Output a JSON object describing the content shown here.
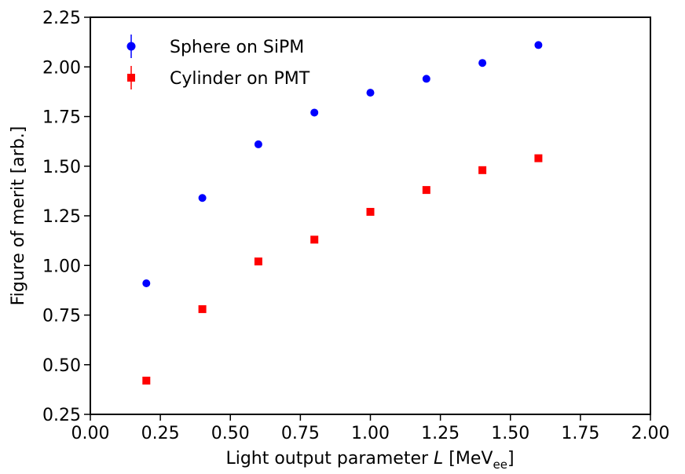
{
  "chart_data": {
    "type": "scatter",
    "xlabel": {
      "prefix": "Light output parameter ",
      "italic": "L",
      "suffix": " [MeV",
      "sub": "ee",
      "close": "]"
    },
    "ylabel": "Figure of merit [arb.]",
    "xlim": [
      0.0,
      2.0
    ],
    "ylim": [
      0.25,
      2.25
    ],
    "x_ticks": [
      "0.00",
      "0.25",
      "0.50",
      "0.75",
      "1.00",
      "1.25",
      "1.50",
      "1.75",
      "2.00"
    ],
    "y_ticks": [
      "0.25",
      "0.50",
      "0.75",
      "1.00",
      "1.25",
      "1.50",
      "1.75",
      "2.00",
      "2.25"
    ],
    "grid": false,
    "legend_position": "top-left",
    "series": [
      {
        "name": "Sphere on SiPM",
        "marker": "circle",
        "color": "#0000ff",
        "x": [
          0.2,
          0.4,
          0.6,
          0.8,
          1.0,
          1.2,
          1.4,
          1.6
        ],
        "y": [
          0.91,
          1.34,
          1.61,
          1.77,
          1.87,
          1.94,
          2.02,
          2.11
        ]
      },
      {
        "name": "Cylinder on PMT",
        "marker": "square",
        "color": "#ff0000",
        "x": [
          0.2,
          0.4,
          0.6,
          0.8,
          1.0,
          1.2,
          1.4,
          1.6
        ],
        "y": [
          0.42,
          0.78,
          1.02,
          1.13,
          1.27,
          1.38,
          1.48,
          1.54
        ]
      }
    ]
  }
}
